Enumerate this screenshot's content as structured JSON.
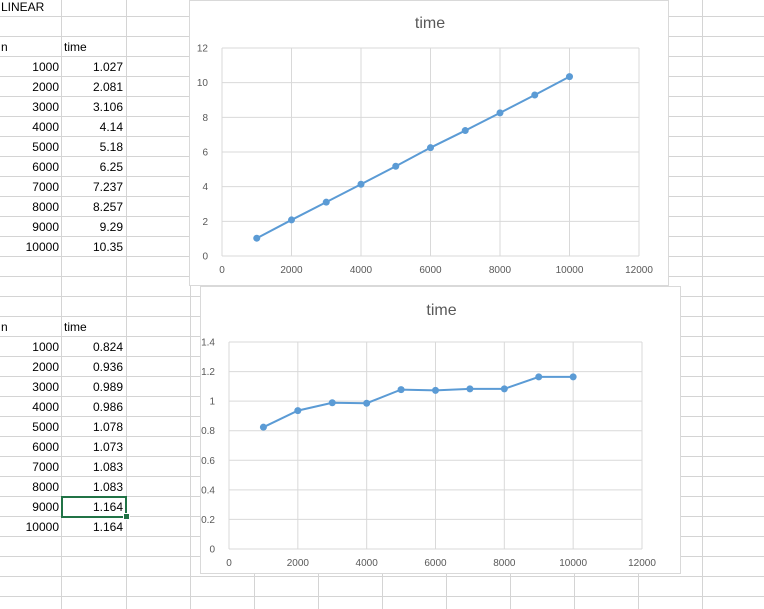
{
  "sheet": {
    "title_cell": "LINEAR",
    "table1": {
      "headers": [
        "n",
        "time"
      ],
      "rows": [
        [
          "1000",
          "1.027"
        ],
        [
          "2000",
          "2.081"
        ],
        [
          "3000",
          "3.106"
        ],
        [
          "4000",
          "4.14"
        ],
        [
          "5000",
          "5.18"
        ],
        [
          "6000",
          "6.25"
        ],
        [
          "7000",
          "7.237"
        ],
        [
          "8000",
          "8.257"
        ],
        [
          "9000",
          "9.29"
        ],
        [
          "10000",
          "10.35"
        ]
      ]
    },
    "table2": {
      "headers": [
        "n",
        "time"
      ],
      "rows": [
        [
          "1000",
          "0.824"
        ],
        [
          "2000",
          "0.936"
        ],
        [
          "3000",
          "0.989"
        ],
        [
          "4000",
          "0.986"
        ],
        [
          "5000",
          "1.078"
        ],
        [
          "6000",
          "1.073"
        ],
        [
          "7000",
          "1.083"
        ],
        [
          "8000",
          "1.083"
        ],
        [
          "9000",
          "1.164"
        ],
        [
          "10000",
          "1.164"
        ]
      ]
    },
    "selected_cell": "1.164"
  },
  "chart_data": [
    {
      "type": "line",
      "title": "time",
      "x": [
        1000,
        2000,
        3000,
        4000,
        5000,
        6000,
        7000,
        8000,
        9000,
        10000
      ],
      "series": [
        {
          "values": [
            1.027,
            2.081,
            3.106,
            4.14,
            5.18,
            6.25,
            7.237,
            8.257,
            9.29,
            10.35
          ]
        }
      ],
      "xlim": [
        0,
        12000
      ],
      "ylim": [
        0,
        12
      ],
      "xticks": [
        "0",
        "2000",
        "4000",
        "6000",
        "8000",
        "10000",
        "12000"
      ],
      "yticks": [
        "0",
        "2",
        "4",
        "6",
        "8",
        "10",
        "12"
      ],
      "grid": true,
      "color": "#5b9bd5"
    },
    {
      "type": "line",
      "title": "time",
      "x": [
        1000,
        2000,
        3000,
        4000,
        5000,
        6000,
        7000,
        8000,
        9000,
        10000
      ],
      "series": [
        {
          "values": [
            0.824,
            0.936,
            0.989,
            0.986,
            1.078,
            1.073,
            1.083,
            1.083,
            1.164,
            1.164
          ]
        }
      ],
      "xlim": [
        0,
        12000
      ],
      "ylim": [
        0,
        1.4
      ],
      "xticks": [
        "0",
        "2000",
        "4000",
        "6000",
        "8000",
        "10000",
        "12000"
      ],
      "yticks": [
        "0",
        "0.2",
        "0.4",
        "0.6",
        "0.8",
        "1",
        "1.2",
        "1.4"
      ],
      "grid": true,
      "color": "#5b9bd5"
    }
  ]
}
